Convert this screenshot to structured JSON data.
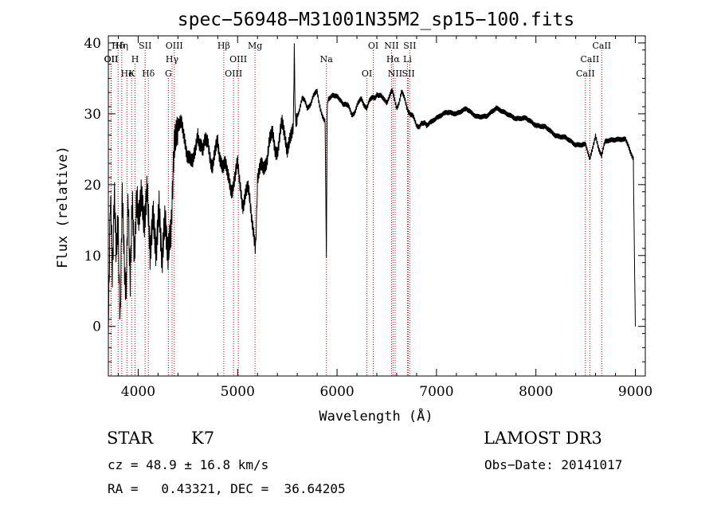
{
  "chart_data": {
    "type": "line",
    "title": "spec−56948−M31001N35M2_sp15−100.fits",
    "xlabel": "Wavelength (Å)",
    "ylabel": "Flux (relative)",
    "xlim": [
      3700,
      9100
    ],
    "ylim": [
      -7,
      41
    ],
    "xticks": [
      4000,
      5000,
      6000,
      7000,
      8000,
      9000
    ],
    "yticks": [
      0,
      10,
      20,
      30,
      40
    ],
    "series": [
      {
        "name": "spectrum",
        "x": [
          3700,
          3720,
          3740,
          3760,
          3780,
          3800,
          3820,
          3840,
          3860,
          3880,
          3900,
          3920,
          3940,
          3960,
          3980,
          4000,
          4030,
          4060,
          4090,
          4120,
          4150,
          4180,
          4210,
          4240,
          4270,
          4300,
          4330,
          4360,
          4400,
          4450,
          4500,
          4550,
          4600,
          4650,
          4700,
          4750,
          4800,
          4850,
          4900,
          4950,
          5000,
          5050,
          5100,
          5150,
          5180,
          5200,
          5250,
          5300,
          5350,
          5400,
          5450,
          5500,
          5560,
          5570,
          5580,
          5600,
          5650,
          5700,
          5750,
          5800,
          5850,
          5880,
          5893,
          5900,
          5910,
          5950,
          6000,
          6050,
          6100,
          6150,
          6200,
          6250,
          6300,
          6350,
          6400,
          6450,
          6500,
          6550,
          6600,
          6650,
          6700,
          6750,
          6800,
          6850,
          6900,
          7000,
          7100,
          7200,
          7300,
          7400,
          7500,
          7600,
          7700,
          7800,
          7900,
          8000,
          8100,
          8200,
          8300,
          8400,
          8500,
          8542,
          8600,
          8662,
          8700,
          8800,
          8900,
          8950,
          8980,
          8990,
          9000
        ],
        "values": [
          3,
          18,
          6,
          22,
          8,
          14,
          2,
          16,
          12,
          4,
          17,
          9,
          15,
          11,
          18,
          13,
          17,
          14,
          20,
          12,
          18,
          13,
          19,
          11,
          16,
          10,
          12,
          23,
          29,
          27,
          25,
          22,
          28,
          24,
          27,
          22,
          26,
          23,
          21,
          20,
          22,
          18,
          19,
          15,
          12,
          20,
          23,
          24,
          27,
          25,
          28,
          26,
          29,
          40,
          28,
          30,
          32,
          31,
          32,
          33,
          30,
          29,
          10,
          30,
          32,
          33,
          32,
          32,
          31,
          30,
          31,
          32,
          31,
          32,
          33,
          32,
          32,
          33,
          31,
          33,
          31,
          30,
          28,
          29,
          28,
          29,
          30,
          30,
          31,
          30,
          30,
          31,
          30,
          29,
          29,
          28,
          28,
          27,
          27,
          26,
          26,
          24,
          27,
          24,
          26,
          26,
          26,
          25,
          24,
          10,
          0
        ]
      }
    ],
    "lines": [
      {
        "label": "Hδ",
        "x": 3798
      },
      {
        "label": "OII",
        "x": 3727
      },
      {
        "label": "He",
        "x": 3889
      },
      {
        "label": "Hη",
        "x": 3835
      },
      {
        "label": "OII",
        "x": 3729
      },
      {
        "label": "K",
        "x": 3934
      },
      {
        "label": "SII",
        "x": 4070
      },
      {
        "label": "H",
        "x": 3969
      },
      {
        "label": "Hδ",
        "x": 4102
      },
      {
        "label": "OIII",
        "x": 4363
      },
      {
        "label": "Hγ",
        "x": 4341
      },
      {
        "label": "G",
        "x": 4304
      },
      {
        "label": "Hβ",
        "x": 4861
      },
      {
        "label": "OIII",
        "x": 5007
      },
      {
        "label": "OIII",
        "x": 4959
      },
      {
        "label": "Mg",
        "x": 5175
      },
      {
        "label": "Na",
        "x": 5893
      },
      {
        "label": "OI",
        "x": 6300
      },
      {
        "label": "OI",
        "x": 6364
      },
      {
        "label": "Hα",
        "x": 6563
      },
      {
        "label": "SII",
        "x": 6717
      },
      {
        "label": "NII",
        "x": 6548
      },
      {
        "label": "Li",
        "x": 6708
      },
      {
        "label": "NII",
        "x": 6584
      },
      {
        "label": "SII",
        "x": 6731
      },
      {
        "label": "CaII",
        "x": 8542
      },
      {
        "label": "CaII",
        "x": 8498
      },
      {
        "label": "CaII",
        "x": 8662
      }
    ]
  },
  "info": {
    "class": "STAR",
    "subclass": "K7",
    "survey": "LAMOST DR3",
    "cz": "cz = 48.9 ± 16.8 km/s",
    "obs_date": "Obs−Date: 20141017",
    "coords": "RA =   0.43321, DEC =  36.64205"
  }
}
